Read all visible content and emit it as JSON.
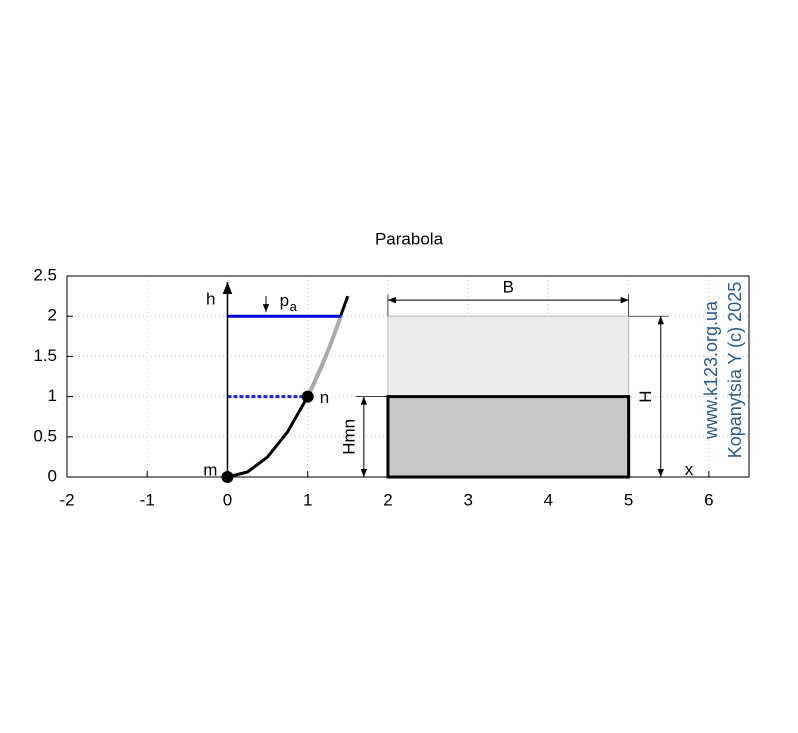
{
  "chart_data": {
    "type": "line",
    "title": "Parabola",
    "xlim": [
      -2,
      6.5
    ],
    "ylim": [
      0,
      2.5
    ],
    "xticks": [
      -2,
      -1,
      0,
      1,
      2,
      3,
      4,
      5,
      6
    ],
    "yticks": [
      0,
      0.5,
      1,
      1.5,
      2,
      2.5
    ],
    "grid": true,
    "rects": [
      {
        "x": [
          2,
          5
        ],
        "y": [
          0,
          2
        ],
        "color": "#ececec",
        "border": "#bbbbbb"
      },
      {
        "x": [
          2,
          5
        ],
        "y": [
          0,
          1
        ],
        "color": "#c8c8c8",
        "border": "#000000"
      }
    ],
    "series": [
      {
        "color": "#000000",
        "x": [
          0,
          0.25,
          0.5,
          0.75,
          1,
          1.25,
          1.5
        ],
        "values": [
          0,
          0.0625,
          0.25,
          0.5625,
          1,
          1.5625,
          2.25
        ]
      },
      {
        "color": "#aaaaaa",
        "x": [
          1,
          1.1,
          1.2,
          1.3,
          1.414
        ],
        "values": [
          1,
          1.21,
          1.44,
          1.69,
          2
        ]
      },
      {
        "color": "#0000dd",
        "x": [
          0,
          1.414
        ],
        "values": [
          2,
          2
        ]
      },
      {
        "color": "#2222dd",
        "dashed": true,
        "x": [
          0,
          1
        ],
        "values": [
          1,
          1
        ]
      }
    ],
    "points": {
      "x": [
        0,
        1
      ],
      "values": [
        0,
        1
      ],
      "labels": [
        "m",
        "n"
      ]
    },
    "dimensions": [
      {
        "label": "B",
        "x": [
          2,
          5
        ],
        "values": [
          2.2,
          2.2
        ]
      },
      {
        "label": "H",
        "x": [
          5.4,
          5.4
        ],
        "values": [
          0,
          2
        ]
      },
      {
        "label": "Hmn",
        "x": [
          1.7,
          1.7
        ],
        "values": [
          0,
          1
        ]
      }
    ],
    "labels": [
      "h",
      "p",
      "a",
      "x"
    ],
    "watermark": [
      "www.k123.org.ua",
      "Kopanytsia Y (c)  2025"
    ]
  }
}
